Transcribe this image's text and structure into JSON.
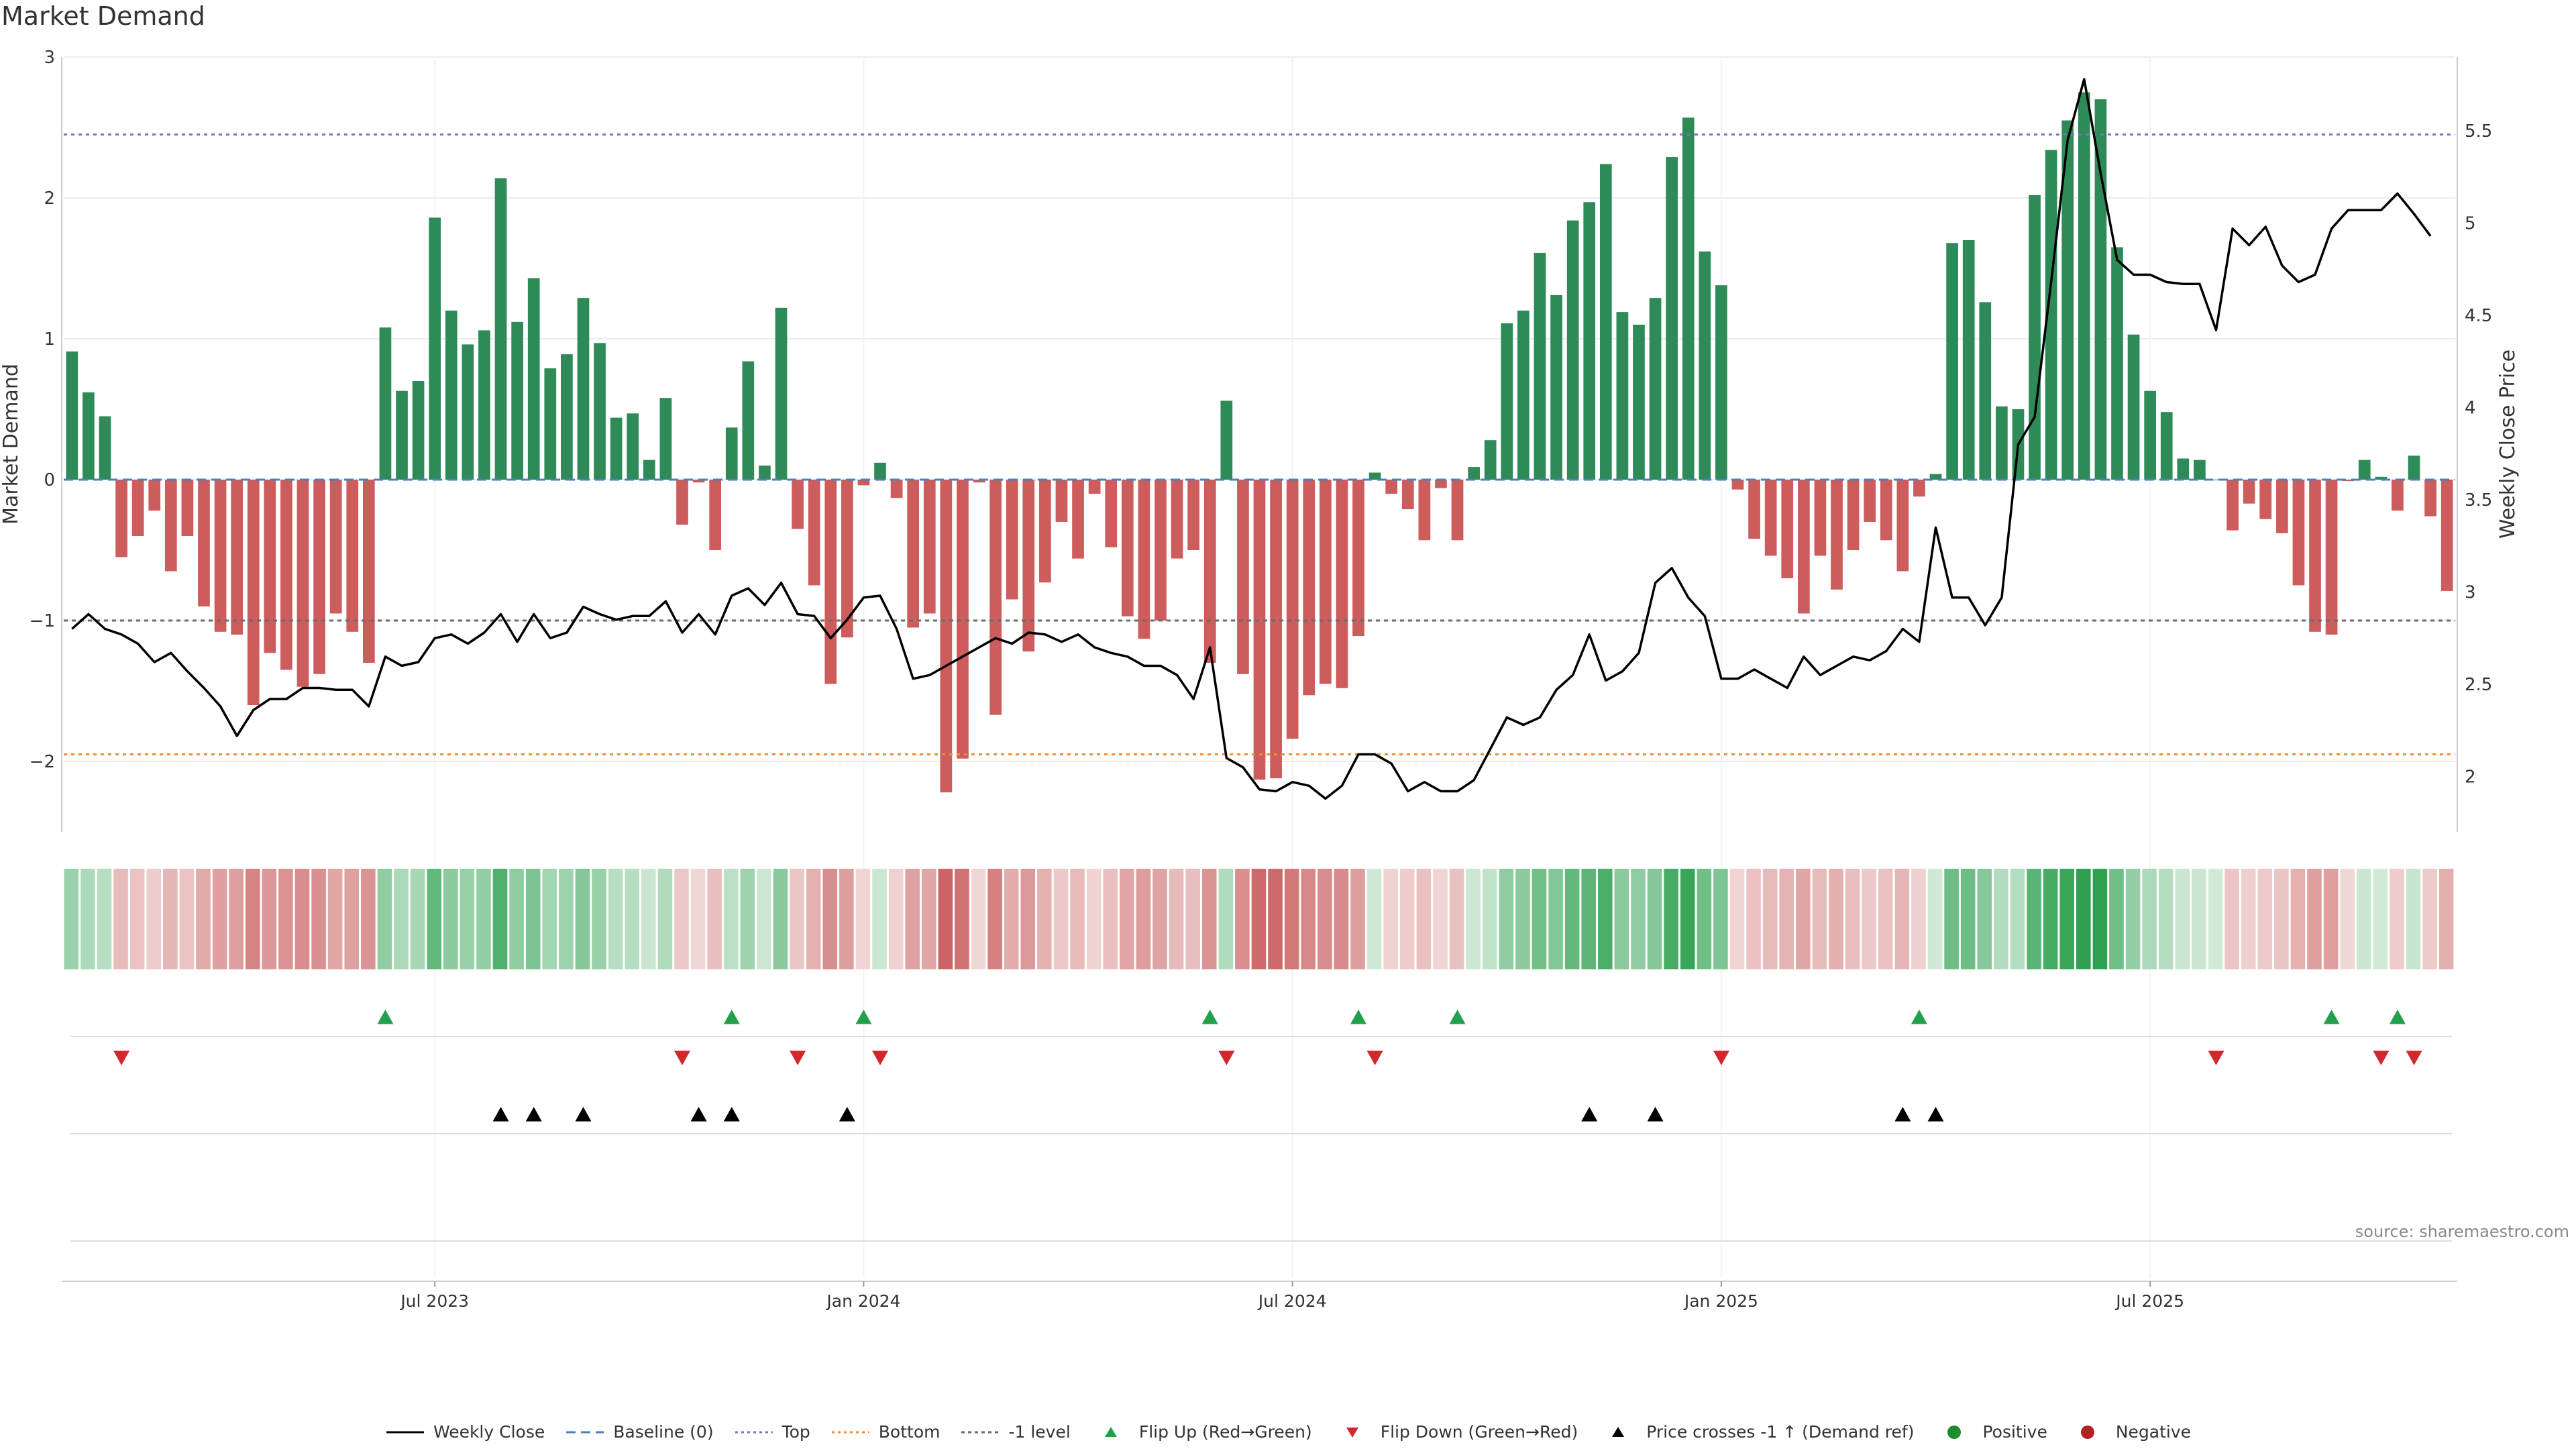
{
  "title": "Market Demand",
  "source_note": "source: sharemaestro.com",
  "chart_data": {
    "type": "bar",
    "ylabel_left": "Market Demand",
    "ylabel_right": "Weekly Close Price",
    "y_left_range": [
      -2.5,
      3
    ],
    "y_right_range": [
      1.7,
      5.9
    ],
    "y_left_ticks": [
      {
        "v": 3,
        "label": "3"
      },
      {
        "v": 2,
        "label": "2"
      },
      {
        "v": 1,
        "label": "1"
      },
      {
        "v": 0,
        "label": "0"
      },
      {
        "v": -1,
        "label": "−1"
      },
      {
        "v": -2,
        "label": "−2"
      }
    ],
    "y_right_ticks": [
      {
        "v": 2,
        "label": "2"
      },
      {
        "v": 2.5,
        "label": "2.5"
      },
      {
        "v": 3,
        "label": "3"
      },
      {
        "v": 3.5,
        "label": "3.5"
      },
      {
        "v": 4,
        "label": "4"
      },
      {
        "v": 4.5,
        "label": "4.5"
      },
      {
        "v": 5,
        "label": "5"
      },
      {
        "v": 5.5,
        "label": "5.5"
      }
    ],
    "x_ticks": [
      {
        "i": 22,
        "label": "Jul 2023"
      },
      {
        "i": 48,
        "label": "Jan 2024"
      },
      {
        "i": 74,
        "label": "Jul 2024"
      },
      {
        "i": 100,
        "label": "Jan 2025"
      },
      {
        "i": 126,
        "label": "Jul 2025"
      }
    ],
    "reference_lines": {
      "top": 2.45,
      "bottom": -1.95,
      "minus_one": -1,
      "baseline": 0
    },
    "demand": [
      0.91,
      0.62,
      0.45,
      -0.55,
      -0.4,
      -0.22,
      -0.65,
      -0.4,
      -0.9,
      -1.08,
      -1.1,
      -1.6,
      -1.23,
      -1.35,
      -1.47,
      -1.38,
      -0.95,
      -1.08,
      -1.3,
      1.08,
      0.63,
      0.7,
      1.86,
      1.2,
      0.96,
      1.06,
      2.14,
      1.12,
      1.43,
      0.79,
      0.89,
      1.29,
      0.97,
      0.44,
      0.47,
      0.14,
      0.58,
      -0.32,
      -0.02,
      -0.5,
      0.37,
      0.84,
      0.1,
      1.22,
      -0.35,
      -0.75,
      -1.45,
      -1.12,
      -0.04,
      0.12,
      -0.13,
      -1.05,
      -0.95,
      -2.22,
      -1.98,
      -0.02,
      -1.67,
      -0.85,
      -1.22,
      -0.73,
      -0.3,
      -0.56,
      -0.1,
      -0.48,
      -0.97,
      -1.13,
      -1.0,
      -0.56,
      -0.5,
      -1.3,
      0.56,
      -1.38,
      -2.13,
      -2.12,
      -1.84,
      -1.53,
      -1.45,
      -1.48,
      -1.11,
      0.05,
      -0.1,
      -0.21,
      -0.43,
      -0.06,
      -0.43,
      0.09,
      0.28,
      1.11,
      1.2,
      1.61,
      1.31,
      1.84,
      1.97,
      2.24,
      1.19,
      1.1,
      1.29,
      2.29,
      2.57,
      1.62,
      1.38,
      -0.07,
      -0.42,
      -0.54,
      -0.7,
      -0.95,
      -0.54,
      -0.78,
      -0.5,
      -0.3,
      -0.43,
      -0.65,
      -0.12,
      0.04,
      1.68,
      1.7,
      1.26,
      0.52,
      0.5,
      2.02,
      2.34,
      2.55,
      2.75,
      2.7,
      1.65,
      1.03,
      0.63,
      0.48,
      0.15,
      0.14,
      0.0,
      -0.36,
      -0.17,
      -0.28,
      -0.38,
      -0.75,
      -1.08,
      -1.1,
      -0.01,
      0.14,
      0.02,
      -0.22,
      0.17,
      -0.26,
      -0.79
    ],
    "weekly_close": [
      2.8,
      2.88,
      2.8,
      2.77,
      2.72,
      2.62,
      2.67,
      2.57,
      2.48,
      2.38,
      2.22,
      2.36,
      2.42,
      2.42,
      2.48,
      2.48,
      2.47,
      2.47,
      2.38,
      2.65,
      2.6,
      2.62,
      2.75,
      2.77,
      2.72,
      2.78,
      2.88,
      2.73,
      2.88,
      2.75,
      2.78,
      2.92,
      2.88,
      2.85,
      2.87,
      2.87,
      2.95,
      2.78,
      2.88,
      2.77,
      2.98,
      3.02,
      2.93,
      3.05,
      2.88,
      2.87,
      2.75,
      2.85,
      2.97,
      2.98,
      2.8,
      2.53,
      2.55,
      2.6,
      2.65,
      2.7,
      2.75,
      2.72,
      2.78,
      2.77,
      2.73,
      2.77,
      2.7,
      2.67,
      2.65,
      2.6,
      2.6,
      2.55,
      2.42,
      2.7,
      2.1,
      2.05,
      1.93,
      1.92,
      1.97,
      1.95,
      1.88,
      1.95,
      2.12,
      2.12,
      2.07,
      1.92,
      1.97,
      1.92,
      1.92,
      1.98,
      2.15,
      2.32,
      2.28,
      2.32,
      2.47,
      2.55,
      2.77,
      2.52,
      2.57,
      2.67,
      3.05,
      3.13,
      2.97,
      2.87,
      2.53,
      2.53,
      2.58,
      2.53,
      2.48,
      2.65,
      2.55,
      2.6,
      2.65,
      2.63,
      2.68,
      2.8,
      2.73,
      3.35,
      2.97,
      2.97,
      2.82,
      2.97,
      3.8,
      3.95,
      4.68,
      5.45,
      5.78,
      5.27,
      4.8,
      4.72,
      4.72,
      4.68,
      4.67,
      4.67,
      4.42,
      4.97,
      4.88,
      4.98,
      4.77,
      4.68,
      4.72,
      4.97,
      5.07,
      5.07,
      5.07,
      5.16,
      5.05,
      4.93
    ],
    "flip_up": [
      19,
      40,
      48,
      69,
      78,
      84,
      112,
      137,
      141
    ],
    "flip_down": [
      3,
      37,
      44,
      49,
      70,
      79,
      100,
      130,
      140,
      142
    ],
    "price_crosses": [
      26,
      28,
      31,
      38,
      40,
      47,
      92,
      96,
      111,
      113
    ],
    "legend": [
      {
        "key": "weekly_close",
        "label": "Weekly Close"
      },
      {
        "key": "baseline",
        "label": "Baseline (0)"
      },
      {
        "key": "top",
        "label": "Top"
      },
      {
        "key": "bottom",
        "label": "Bottom"
      },
      {
        "key": "minus_one",
        "label": "-1 level"
      },
      {
        "key": "flip_up",
        "label": "Flip Up (Red→Green)"
      },
      {
        "key": "flip_down",
        "label": "Flip Down (Green→Red)"
      },
      {
        "key": "price_cross",
        "label": "Price crosses -1 ↑ (Demand ref)"
      },
      {
        "key": "positive",
        "label": "Positive"
      },
      {
        "key": "negative",
        "label": "Negative"
      }
    ]
  },
  "colors": {
    "positive": "#2e8b57",
    "negative": "#cd5c5c",
    "close": "#000000",
    "baseline": "#4a7fc1",
    "top": "#7b6fd0",
    "bottom": "#f08c2e",
    "minus_one": "#6b6b6b",
    "flip_up": "#22a04b",
    "flip_down": "#d0282e",
    "cross": "#000000",
    "dot_pos": "#1e8c2f",
    "dot_neg": "#b22222",
    "grid": "#ececec"
  }
}
